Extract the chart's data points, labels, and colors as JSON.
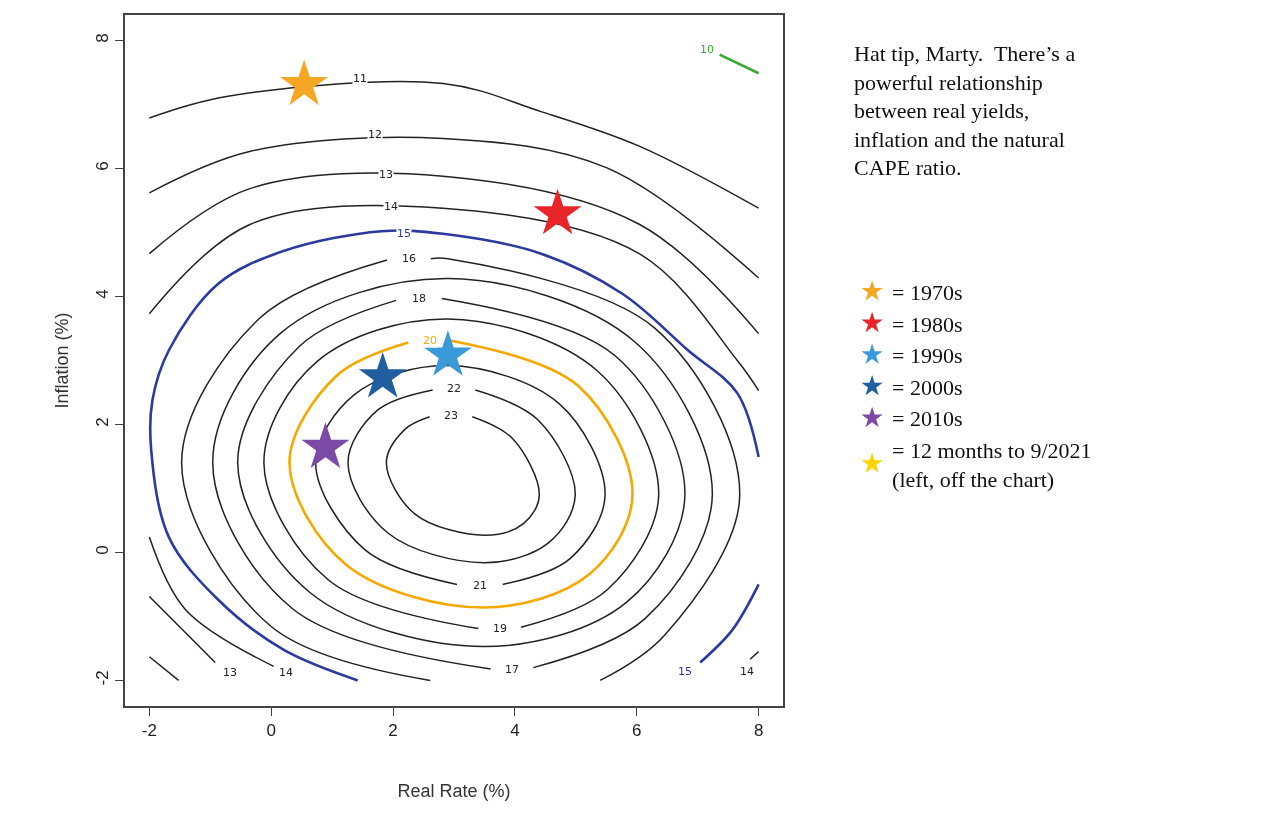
{
  "chart_data": {
    "type": "line",
    "xlabel": "Real Rate (%)",
    "ylabel": "Inflation (%)",
    "xlim": [
      -2.4,
      8.4
    ],
    "ylim": [
      -2.4,
      8.4
    ],
    "xticks": [
      -2,
      0,
      2,
      4,
      6,
      8
    ],
    "yticks": [
      -2,
      0,
      2,
      4,
      6,
      8
    ],
    "legend": "right",
    "line_style": "solid",
    "annotations": [
      "Hat tip, Marty.  There’s a\npowerful relationship\nbetween real yields,\ninflation and the natural\nCAPE ratio.",
      {
        "text": "10",
        "x": 7.16,
        "y": 7.86
      },
      {
        "text": "11",
        "x": 1.46,
        "y": 7.41
      },
      {
        "text": "12",
        "x": 1.7,
        "y": 6.54
      },
      {
        "text": "13",
        "x": 1.89,
        "y": 5.91
      },
      {
        "text": "14",
        "x": 1.97,
        "y": 5.41
      },
      {
        "text": "15",
        "x": 2.18,
        "y": 4.99
      },
      {
        "text": "16",
        "x": 2.26,
        "y": 4.59
      },
      {
        "text": "18",
        "x": 2.42,
        "y": 3.97
      },
      {
        "text": "20",
        "x": 2.6,
        "y": 3.31
      },
      {
        "text": "22",
        "x": 3.0,
        "y": 2.56
      },
      {
        "text": "23",
        "x": 2.95,
        "y": 2.14
      },
      {
        "text": "21",
        "x": 3.42,
        "y": -0.52
      },
      {
        "text": "19",
        "x": 3.76,
        "y": -1.19
      },
      {
        "text": "17",
        "x": 3.95,
        "y": -1.83
      },
      {
        "text": "13",
        "x": -0.67,
        "y": -1.88
      },
      {
        "text": "14",
        "x": 0.25,
        "y": -1.88
      },
      {
        "text": "15",
        "x": 6.79,
        "y": -1.86
      },
      {
        "text": "14",
        "x": 7.81,
        "y": -1.86
      }
    ],
    "series": [
      {
        "color": "#3aaa35",
        "x": [
          7.36,
          8.0
        ],
        "values": [
          7.78,
          7.49
        ]
      },
      {
        "color": "#222222",
        "x": [
          -2,
          -0.71,
          2.82,
          4.43,
          6.04,
          8.0
        ],
        "values": [
          6.79,
          7.13,
          7.33,
          6.89,
          6.35,
          5.38
        ]
      },
      {
        "color": "#222222",
        "x": [
          -2,
          -0.34,
          2.82,
          5.51,
          8.0
        ],
        "values": [
          5.62,
          6.27,
          6.47,
          6.01,
          4.29
        ]
      },
      {
        "color": "#222222",
        "x": [
          -2,
          -1.52
        ],
        "values": [
          -1.63,
          -2.0
        ]
      },
      {
        "color": "#222222",
        "x": [
          -2,
          -0.34,
          2.82,
          6.04,
          8.0
        ],
        "values": [
          4.67,
          5.69,
          5.88,
          5.13,
          3.42
        ]
      },
      {
        "color": "#222222",
        "x": [
          -2,
          -1.41,
          -0.92
        ],
        "values": [
          -0.69,
          -1.25,
          -1.72
        ]
      },
      {
        "color": "#222222",
        "x": [
          -2,
          -0.34,
          2.82,
          6.04,
          7.65,
          8.0
        ],
        "values": [
          3.73,
          5.13,
          5.38,
          4.67,
          3.0,
          2.53
        ]
      },
      {
        "color": "#222222",
        "x": [
          -2,
          -1.41,
          0.04
        ],
        "values": [
          0.24,
          -0.89,
          -1.78
        ]
      },
      {
        "color": "#222222",
        "x": [
          7.86,
          8.0
        ],
        "values": [
          -1.67,
          -1.55
        ]
      },
      {
        "color": "#2b3a9e",
        "x": [
          1.42,
          0.2,
          -0.87,
          -1.68,
          -1.97,
          -1.95,
          -1.68,
          -0.87,
          0.2,
          1.81,
          2.82,
          4.43,
          5.77,
          6.84,
          7.65,
          8.0
        ],
        "values": [
          -2.0,
          -1.52,
          -0.74,
          0.24,
          1.6,
          2.38,
          3.16,
          4.2,
          4.71,
          5.02,
          4.98,
          4.67,
          4.04,
          3.16,
          2.49,
          1.49
        ]
      },
      {
        "color": "#2b3a9e",
        "x": [
          7.04,
          7.57,
          8.0
        ],
        "values": [
          -1.72,
          -1.21,
          -0.5
        ]
      },
      {
        "color": "#222222",
        "x": [
          2.61,
          -0.01,
          -1.47,
          -0.19,
          1.9
        ],
        "values": [
          -2,
          -1.15,
          1.4,
          3.66,
          4.57
        ]
      },
      {
        "color": "#222222",
        "x": [
          2.62,
          2.9,
          6.29,
          7.69,
          6.46,
          5.4
        ],
        "values": [
          4.59,
          4.59,
          3.51,
          0.9,
          -1.29,
          -2
        ]
      },
      {
        "color": "#222222",
        "x": [
          4.3,
          6.14,
          7.24,
          5.97,
          2.9,
          0.17,
          -0.96,
          0.35,
          3.6
        ],
        "values": [
          -1.8,
          -1.03,
          0.9,
          3.29,
          4.28,
          3.44,
          1.4,
          -0.88,
          -1.82
        ]
      },
      {
        "color": "#222222",
        "x": [
          2.8,
          5.65,
          6.79,
          5.83,
          3.5,
          0.64,
          -0.55,
          0.46,
          2.05
        ],
        "values": [
          3.97,
          3.07,
          0.9,
          -0.78,
          -1.47,
          -0.63,
          1.4,
          3.22,
          3.94
        ]
      },
      {
        "color": "#222222",
        "x": [
          4.1,
          5.52,
          6.36,
          5.35,
          2.9,
          0.76,
          -0.12,
          0.94,
          3.4
        ],
        "values": [
          -1.17,
          -0.58,
          0.9,
          2.84,
          3.65,
          2.99,
          1.4,
          -0.43,
          -1.19
        ]
      },
      {
        "color": "#f5a800",
        "x": [
          2.95,
          5.04,
          5.93,
          5.22,
          3.5,
          1.24,
          0.3,
          1.06,
          2.25
        ],
        "values": [
          3.31,
          2.6,
          0.9,
          -0.34,
          -0.86,
          -0.2,
          1.4,
          2.75,
          3.28
        ]
      },
      {
        "color": "#222222",
        "x": [
          3.8,
          4.9,
          5.48,
          4.72,
          2.9,
          1.37,
          0.73,
          1.54,
          3.05
        ],
        "values": [
          -0.5,
          -0.1,
          0.9,
          2.33,
          2.92,
          2.47,
          1.4,
          0.04,
          -0.5
        ]
      },
      {
        "color": "#222222",
        "x": [
          3.35,
          4.38,
          4.99,
          4.55,
          3.5,
          1.92,
          1.26,
          1.74,
          2.65
        ],
        "values": [
          2.54,
          2.07,
          0.9,
          0.15,
          -0.16,
          0.3,
          1.4,
          2.22,
          2.54
        ]
      },
      {
        "color": "#222222",
        "x": [
          3.3,
          3.96,
          4.4,
          4.14,
          3.5,
          2.36,
          1.89,
          2.19,
          2.6
        ],
        "values": [
          2.12,
          1.78,
          0.9,
          0.45,
          0.27,
          0.6,
          1.4,
          1.92,
          2.12
        ]
      },
      {
        "type": "scatter",
        "marker": "star",
        "name": "= 1970s",
        "color": "#f5a623",
        "x": [
          0.54
        ],
        "values": [
          7.31
        ]
      },
      {
        "type": "scatter",
        "marker": "star",
        "name": "= 1980s",
        "color": "#e8262a",
        "x": [
          4.7
        ],
        "values": [
          5.29
        ]
      },
      {
        "type": "scatter",
        "marker": "star",
        "name": "= 1990s",
        "color": "#3a9ad9",
        "x": [
          2.9
        ],
        "values": [
          3.08
        ]
      },
      {
        "type": "scatter",
        "marker": "star",
        "name": "= 2000s",
        "color": "#1f5fa0",
        "x": [
          1.83
        ],
        "values": [
          2.74
        ]
      },
      {
        "type": "scatter",
        "marker": "star",
        "name": "= 2010s",
        "color": "#7b4aa6",
        "x": [
          0.89
        ],
        "values": [
          1.64
        ]
      },
      {
        "type": "scatter",
        "marker": "star",
        "name": "= 12 months to 9/2021\n(left, off the chart)",
        "color": "#ffd400",
        "x": [
          null
        ],
        "values": [
          null
        ]
      }
    ]
  }
}
